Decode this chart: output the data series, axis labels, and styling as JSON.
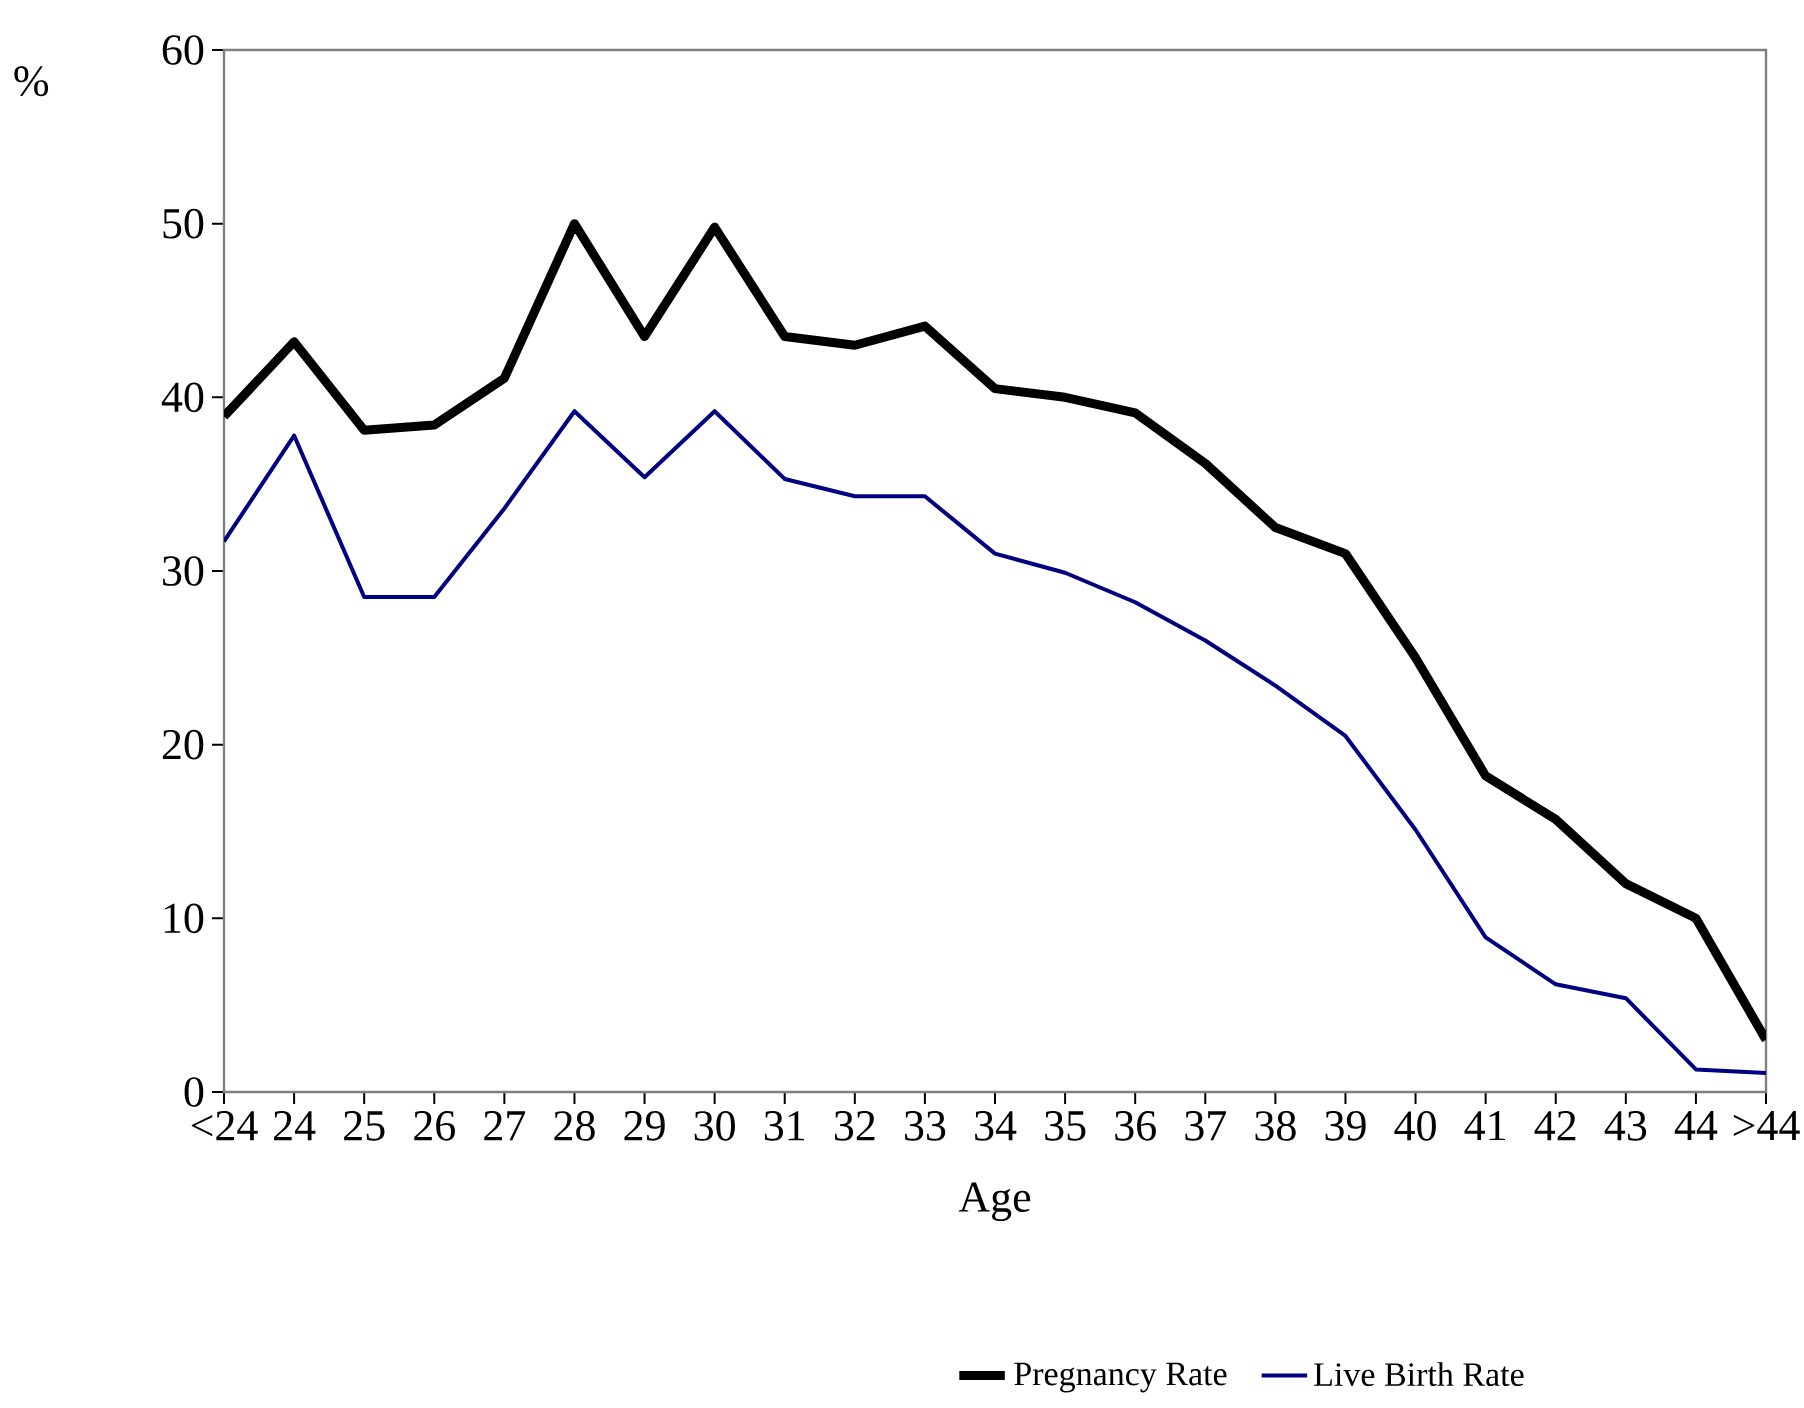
{
  "chart_data": {
    "type": "line",
    "xlabel": "Age",
    "ylabel": "%",
    "categories": [
      "<24",
      "24",
      "25",
      "26",
      "27",
      "28",
      "29",
      "30",
      "31",
      "32",
      "33",
      "34",
      "35",
      "36",
      "37",
      "38",
      "39",
      "40",
      "41",
      "42",
      "43",
      "44",
      ">44"
    ],
    "series": [
      {
        "name": "Pregnancy Rate",
        "color": "#000000",
        "values": [
          38.9,
          43.2,
          38.1,
          38.4,
          41.1,
          50.0,
          43.5,
          49.8,
          43.5,
          43.0,
          44.1,
          40.5,
          40.0,
          39.1,
          36.2,
          32.5,
          31.0,
          25.0,
          18.2,
          15.7,
          12.0,
          10.0,
          3.0
        ]
      },
      {
        "name": "Live Birth Rate",
        "color": "#000080",
        "values": [
          31.7,
          37.8,
          28.5,
          28.5,
          33.6,
          39.2,
          35.4,
          39.2,
          35.3,
          34.3,
          34.3,
          31.0,
          29.9,
          28.2,
          26.0,
          23.4,
          20.5,
          15.1,
          8.9,
          6.2,
          5.4,
          1.3,
          1.1
        ]
      }
    ],
    "ylim": [
      0,
      60
    ],
    "yticks": [
      0,
      10,
      20,
      30,
      40,
      50,
      60
    ],
    "legend": "bottom"
  }
}
